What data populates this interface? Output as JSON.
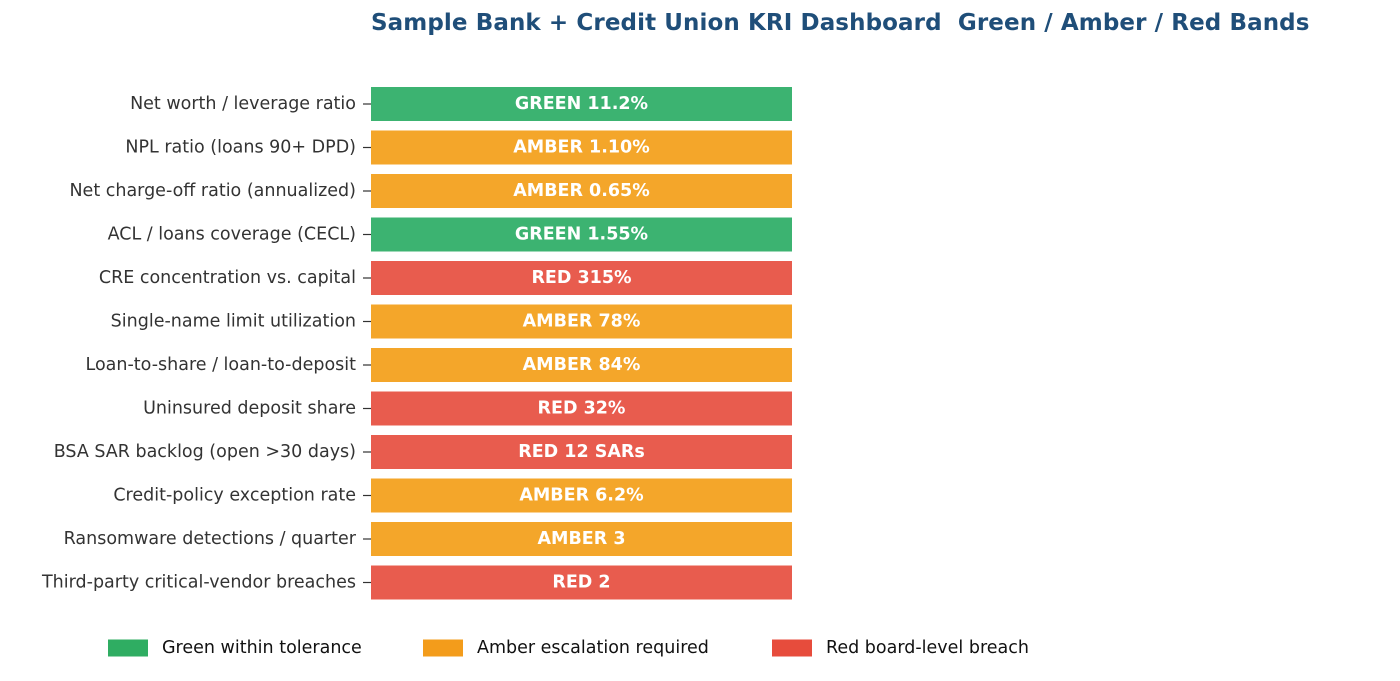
{
  "chart_data": {
    "type": "bar",
    "orientation": "horizontal",
    "title": "Sample Bank + Credit Union KRI Dashboard  Green / Amber / Red Bands",
    "xlabel": "",
    "ylabel": "",
    "grid": false,
    "legend_position": "bottom",
    "status_colors": {
      "GREEN": "#3cb371",
      "AMBER": "#f4a62a",
      "RED": "#e85c4e"
    },
    "legend_colors": {
      "GREEN": "#2fad62",
      "AMBER": "#f39c1b",
      "RED": "#e74c3c"
    },
    "categories": [
      "Net worth / leverage ratio",
      "NPL ratio (loans 90+ DPD)",
      "Net charge-off ratio (annualized)",
      "ACL / loans coverage (CECL)",
      "CRE concentration vs. capital",
      "Single-name limit utilization",
      "Loan-to-share / loan-to-deposit",
      "Uninsured deposit share",
      "BSA SAR backlog (open >30 days)",
      "Credit-policy exception rate",
      "Ransomware detections / quarter",
      "Third-party critical-vendor breaches"
    ],
    "status": [
      "GREEN",
      "AMBER",
      "AMBER",
      "GREEN",
      "RED",
      "AMBER",
      "AMBER",
      "RED",
      "RED",
      "AMBER",
      "AMBER",
      "RED"
    ],
    "values": [
      "11.2%",
      "1.10%",
      "0.65%",
      "1.55%",
      "315%",
      "78%",
      "84%",
      "32%",
      "12 SARs",
      "6.2%",
      "3",
      "2"
    ],
    "legend": [
      {
        "status": "GREEN",
        "label": "Green  within tolerance"
      },
      {
        "status": "AMBER",
        "label": "Amber  escalation required"
      },
      {
        "status": "RED",
        "label": "Red  board-level breach"
      }
    ]
  }
}
